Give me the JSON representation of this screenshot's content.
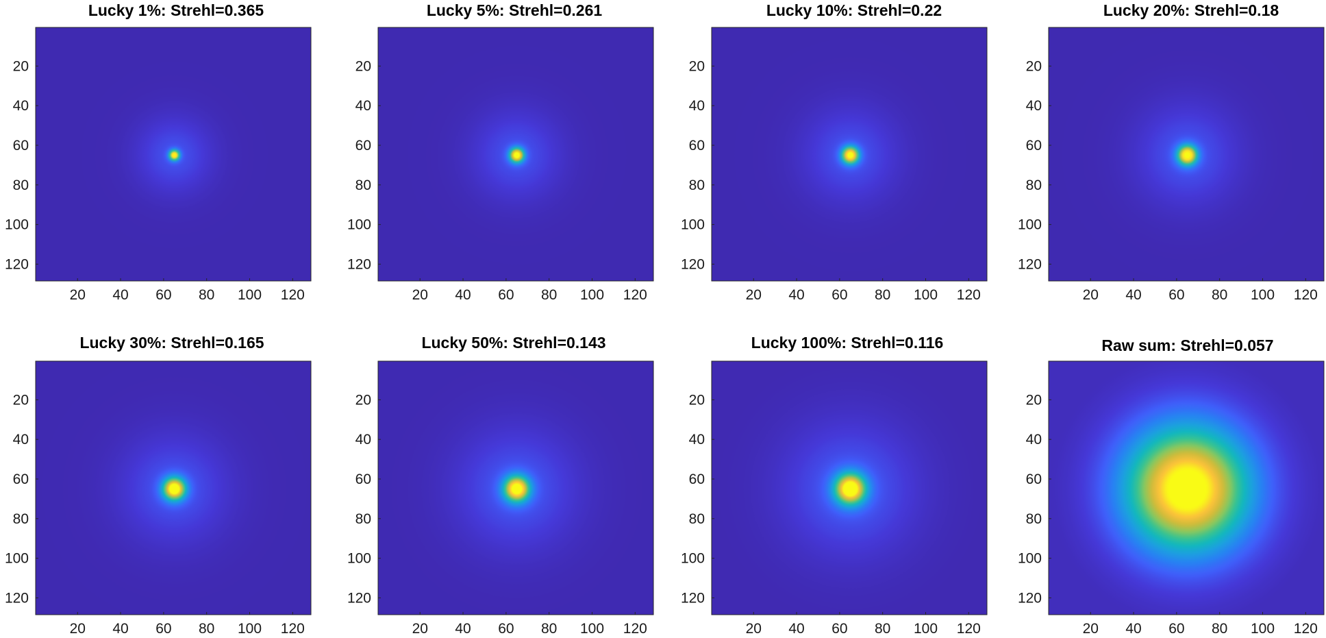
{
  "chart_data": [
    {
      "type": "heatmap",
      "title": "Lucky 1%: Strehl=0.365",
      "strehl": 0.365,
      "xticks": [
        "20",
        "40",
        "60",
        "80",
        "100",
        "120"
      ],
      "yticks": [
        "20",
        "40",
        "60",
        "80",
        "100",
        "120"
      ],
      "xlim": [
        0.5,
        128.5
      ],
      "ylim": [
        0.5,
        128.5
      ],
      "y_direction": "reversed",
      "peak_position": [
        65,
        65
      ],
      "core_width": 1.6,
      "halo_width": 12,
      "halo_amplitude": 0.15,
      "colormap": "parula"
    },
    {
      "type": "heatmap",
      "title": "Lucky 5%: Strehl=0.261",
      "strehl": 0.261,
      "xticks": [
        "20",
        "40",
        "60",
        "80",
        "100",
        "120"
      ],
      "yticks": [
        "20",
        "40",
        "60",
        "80",
        "100",
        "120"
      ],
      "xlim": [
        0.5,
        128.5
      ],
      "ylim": [
        0.5,
        128.5
      ],
      "y_direction": "reversed",
      "peak_position": [
        65,
        65
      ],
      "core_width": 2.3,
      "halo_width": 14,
      "halo_amplitude": 0.15,
      "colormap": "parula"
    },
    {
      "type": "heatmap",
      "title": "Lucky 10%: Strehl=0.22",
      "strehl": 0.22,
      "xticks": [
        "20",
        "40",
        "60",
        "80",
        "100",
        "120"
      ],
      "yticks": [
        "20",
        "40",
        "60",
        "80",
        "100",
        "120"
      ],
      "xlim": [
        0.5,
        128.5
      ],
      "ylim": [
        0.5,
        128.5
      ],
      "y_direction": "reversed",
      "peak_position": [
        65,
        65
      ],
      "core_width": 2.7,
      "halo_width": 15,
      "halo_amplitude": 0.15,
      "colormap": "parula"
    },
    {
      "type": "heatmap",
      "title": "Lucky 20%: Strehl=0.18",
      "strehl": 0.18,
      "xticks": [
        "20",
        "40",
        "60",
        "80",
        "100",
        "120"
      ],
      "yticks": [
        "20",
        "40",
        "60",
        "80",
        "100",
        "120"
      ],
      "xlim": [
        0.5,
        128.5
      ],
      "ylim": [
        0.5,
        128.5
      ],
      "y_direction": "reversed",
      "peak_position": [
        65,
        65
      ],
      "core_width": 3.1,
      "halo_width": 16,
      "halo_amplitude": 0.16,
      "colormap": "parula"
    },
    {
      "type": "heatmap",
      "title": "Lucky 30%: Strehl=0.165",
      "strehl": 0.165,
      "xticks": [
        "20",
        "40",
        "60",
        "80",
        "100",
        "120"
      ],
      "yticks": [
        "20",
        "40",
        "60",
        "80",
        "100",
        "120"
      ],
      "xlim": [
        0.5,
        128.5
      ],
      "ylim": [
        0.5,
        128.5
      ],
      "y_direction": "reversed",
      "peak_position": [
        65,
        65
      ],
      "core_width": 3.6,
      "halo_width": 17,
      "halo_amplitude": 0.16,
      "colormap": "parula"
    },
    {
      "type": "heatmap",
      "title": "Lucky 50%: Strehl=0.143",
      "strehl": 0.143,
      "xticks": [
        "20",
        "40",
        "60",
        "80",
        "100",
        "120"
      ],
      "yticks": [
        "20",
        "40",
        "60",
        "80",
        "100",
        "120"
      ],
      "xlim": [
        0.5,
        128.5
      ],
      "ylim": [
        0.5,
        128.5
      ],
      "y_direction": "reversed",
      "peak_position": [
        65,
        65
      ],
      "core_width": 4.1,
      "halo_width": 19,
      "halo_amplitude": 0.17,
      "colormap": "parula"
    },
    {
      "type": "heatmap",
      "title": "Lucky 100%: Strehl=0.116",
      "strehl": 0.116,
      "xticks": [
        "20",
        "40",
        "60",
        "80",
        "100",
        "120"
      ],
      "yticks": [
        "20",
        "40",
        "60",
        "80",
        "100",
        "120"
      ],
      "xlim": [
        0.5,
        128.5
      ],
      "ylim": [
        0.5,
        128.5
      ],
      "y_direction": "reversed",
      "peak_position": [
        65,
        65
      ],
      "core_width": 5,
      "halo_width": 21,
      "halo_amplitude": 0.18,
      "colormap": "parula"
    },
    {
      "type": "heatmap",
      "title": "Raw sum: Strehl=0.057",
      "strehl": 0.057,
      "xticks": [
        "20",
        "40",
        "60",
        "80",
        "100",
        "120"
      ],
      "yticks": [
        "20",
        "40",
        "60",
        "80",
        "100",
        "120"
      ],
      "xlim": [
        0.5,
        128.5
      ],
      "ylim": [
        0.5,
        128.5
      ],
      "y_direction": "reversed",
      "peak_position": [
        65,
        65
      ],
      "core_width": 20,
      "halo_width": 34,
      "halo_amplitude": 0.1,
      "colormap": "parula"
    }
  ]
}
